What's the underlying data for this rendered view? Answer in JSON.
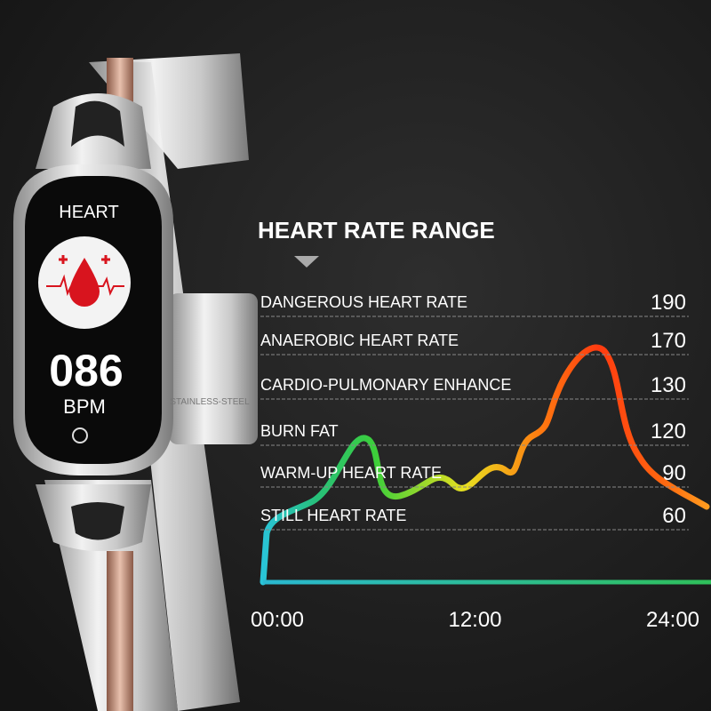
{
  "watch": {
    "screen_title": "HEART",
    "heart_rate": "086",
    "unit": "BPM",
    "band_label": "STAINLESS-STEEL"
  },
  "panel": {
    "title": "HEART RATE RANGE",
    "zones": [
      {
        "label": "DANGEROUS HEART RATE",
        "value": 190
      },
      {
        "label": "ANAEROBIC HEART RATE",
        "value": 170
      },
      {
        "label": "CARDIO-PULMONARY ENHANCE",
        "value": 130
      },
      {
        "label": "BURN FAT",
        "value": 120
      },
      {
        "label": "WARM-UP HEART RATE",
        "value": 90
      },
      {
        "label": "STILL HEART RATE",
        "value": 60
      }
    ],
    "time_axis": [
      "00:00",
      "12:00",
      "24:00"
    ]
  }
}
